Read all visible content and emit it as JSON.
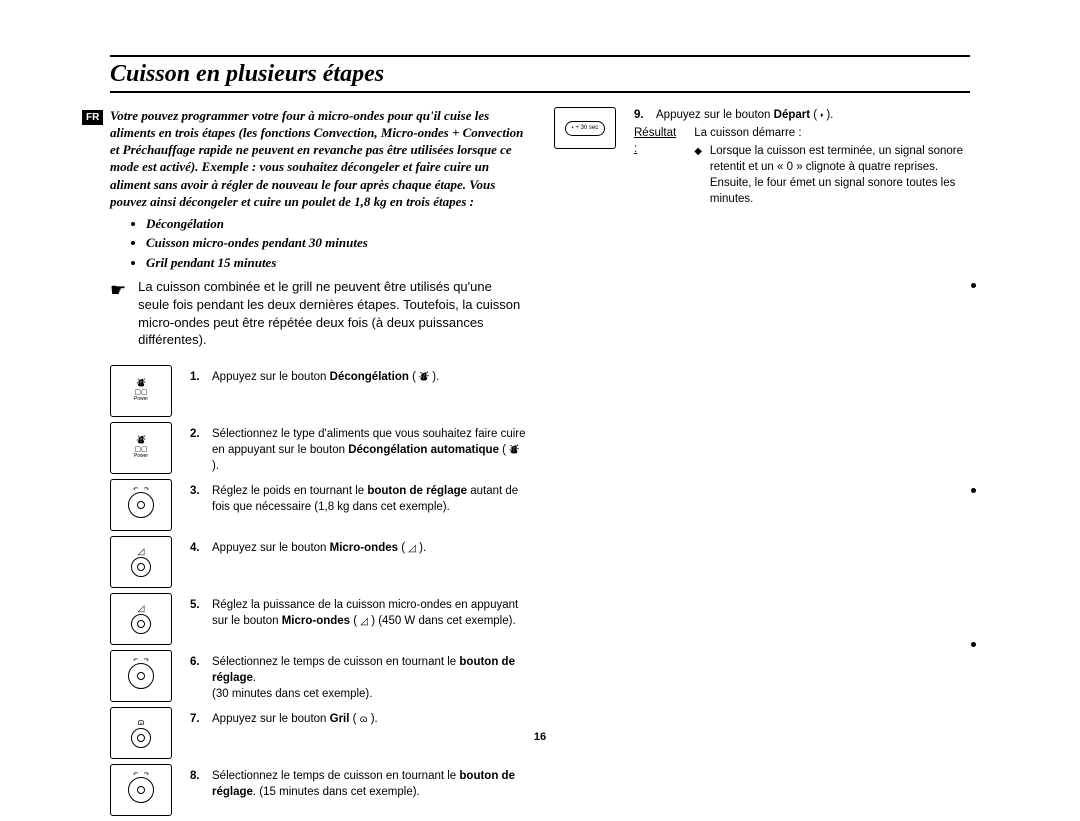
{
  "meta": {
    "page_number": "16",
    "lang_badge": "FR"
  },
  "title": "Cuisson en plusieurs étapes",
  "intro": "Votre pouvez programmer votre four à micro-ondes pour qu'il cuise les aliments en trois étapes (les fonctions Convection, Micro-ondes + Convection et Préchauffage rapide ne peuvent en revanche pas être utilisées lorsque ce mode est activé). Exemple : vous souhaitez décongeler et faire cuire un aliment sans avoir à régler de nouveau le four après chaque étape. Vous pouvez ainsi décongeler et cuire un poulet de 1,8 kg en trois étapes :",
  "intro_bullets": [
    "Décongélation",
    "Cuisson micro-ondes pendant 30 minutes",
    "Gril pendant 15 minutes"
  ],
  "note": "La cuisson combinée et le grill ne peuvent être utilisés qu'une seule fois pendant les deux dernières étapes. Toutefois, la cuisson micro-ondes peut être répétée deux fois (à deux puissances différentes).",
  "steps_left": [
    {
      "num": "1.",
      "panel": "power",
      "text": "Appuyez sur le bouton <b>Décongélation</b> ( <span class='small-sym'>⛇</span> )."
    },
    {
      "num": "2.",
      "panel": "power",
      "text": "Sélectionnez le type d'aliments que vous souhaitez faire cuire en appuyant sur le bouton <b>Décongélation automatique</b> ( <span class='small-sym'>⛇</span> )."
    },
    {
      "num": "3.",
      "panel": "dial",
      "text": "Réglez le poids en tournant le <b>bouton de réglage</b> autant de fois que nécessaire (1,8 kg dans cet exemple)."
    },
    {
      "num": "4.",
      "panel": "micro",
      "text": "Appuyez sur le bouton <b>Micro-ondes</b> ( <span class='small-sym'>◿</span> )."
    },
    {
      "num": "5.",
      "panel": "micro",
      "text": "Réglez la puissance de la cuisson micro-ondes en appuyant sur le bouton <b>Micro-ondes</b> ( <span class='small-sym'>◿</span> ) (450 W dans cet exemple)."
    },
    {
      "num": "6.",
      "panel": "dial",
      "text": "Sélectionnez le temps de cuisson en tournant le <b>bouton de réglage</b>.<br>(30 minutes dans cet exemple)."
    },
    {
      "num": "7.",
      "panel": "grill",
      "text": "Appuyez sur le bouton <b>Gril</b> ( <span class='small-sym'>ɷ</span> )."
    },
    {
      "num": "8.",
      "panel": "dial",
      "text": "Sélectionnez le temps de cuisson en tournant le <b>bouton de réglage</b>. (15 minutes dans cet exemple)."
    }
  ],
  "step9": {
    "num": "9.",
    "text": "Appuyez sur le bouton <b>Départ</b> ( <span class='small-sym'>⬪</span> ).",
    "result_label": "Résultat :",
    "result_lead": "La cuisson démarre :",
    "result_item": "Lorsque la cuisson est terminée, un signal sonore retentit et un « 0 » clignote à quatre reprises. Ensuite, le four émet un signal sonore toutes les minutes.",
    "button_label": "+ 30 sec"
  },
  "panel_labels": {
    "power": "Power"
  }
}
